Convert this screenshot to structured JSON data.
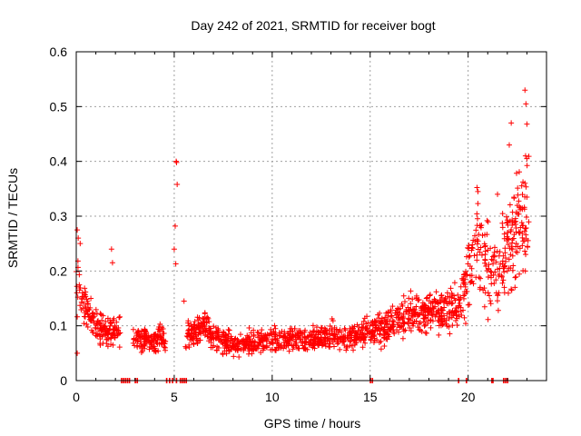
{
  "chart_data": {
    "type": "scatter",
    "title": "Day 242 of 2021, SRMTID for receiver bogt",
    "xlabel": "GPS time / hours",
    "ylabel": "SRMTID / TECUs",
    "xlim": [
      0,
      24
    ],
    "ylim": [
      0,
      0.6
    ],
    "xticks": [
      "0",
      "5",
      "10",
      "15",
      "20"
    ],
    "yticks": [
      "0",
      "0.1",
      "0.2",
      "0.3",
      "0.4",
      "0.5",
      "0.6"
    ],
    "grid": true,
    "marker": "plus",
    "color": "#ff0000",
    "trend": [
      [
        0.0,
        0.19
      ],
      [
        0.3,
        0.15
      ],
      [
        0.6,
        0.13
      ],
      [
        1.0,
        0.1
      ],
      [
        1.5,
        0.09
      ],
      [
        2.0,
        0.09
      ],
      [
        2.3,
        0.085
      ],
      [
        3.0,
        0.075
      ],
      [
        3.5,
        0.075
      ],
      [
        4.0,
        0.07
      ],
      [
        4.3,
        0.085
      ],
      [
        4.5,
        0.07
      ],
      [
        5.5,
        0.08
      ],
      [
        6.0,
        0.085
      ],
      [
        6.5,
        0.1
      ],
      [
        7.0,
        0.08
      ],
      [
        8.0,
        0.065
      ],
      [
        9.0,
        0.07
      ],
      [
        10.0,
        0.075
      ],
      [
        11.0,
        0.075
      ],
      [
        12.0,
        0.075
      ],
      [
        13.0,
        0.08
      ],
      [
        14.0,
        0.08
      ],
      [
        15.0,
        0.09
      ],
      [
        16.0,
        0.1
      ],
      [
        17.0,
        0.12
      ],
      [
        18.0,
        0.125
      ],
      [
        19.0,
        0.13
      ],
      [
        19.5,
        0.13
      ],
      [
        20.0,
        0.2
      ],
      [
        20.5,
        0.24
      ],
      [
        21.0,
        0.22
      ],
      [
        21.5,
        0.18
      ],
      [
        22.0,
        0.25
      ],
      [
        22.5,
        0.27
      ],
      [
        23.0,
        0.28
      ]
    ],
    "notable_points": [
      [
        0.05,
        0.275
      ],
      [
        0.1,
        0.26
      ],
      [
        0.2,
        0.25
      ],
      [
        0.05,
        0.05
      ],
      [
        1.8,
        0.24
      ],
      [
        1.85,
        0.215
      ],
      [
        5.1,
        0.4
      ],
      [
        5.12,
        0.398
      ],
      [
        5.15,
        0.358
      ],
      [
        5.05,
        0.282
      ],
      [
        5.0,
        0.24
      ],
      [
        5.08,
        0.213
      ],
      [
        5.5,
        0.145
      ],
      [
        20.5,
        0.345
      ],
      [
        21.5,
        0.34
      ],
      [
        22.2,
        0.47
      ],
      [
        22.1,
        0.43
      ],
      [
        22.9,
        0.53
      ],
      [
        22.95,
        0.505
      ],
      [
        23.0,
        0.468
      ],
      [
        22.93,
        0.41
      ],
      [
        23.0,
        0.405
      ],
      [
        22.9,
        0.36
      ]
    ],
    "zero_points_x": [
      2.3,
      2.4,
      2.5,
      2.6,
      2.7,
      3.0,
      3.1,
      4.6,
      4.75,
      4.9,
      5.1,
      5.3,
      5.4,
      5.5,
      5.6,
      15.0,
      15.1,
      19.5,
      19.9,
      21.2,
      21.25,
      21.8,
      21.9,
      22.0
    ],
    "noise_seed": 242,
    "n_generated_points": 1800
  }
}
